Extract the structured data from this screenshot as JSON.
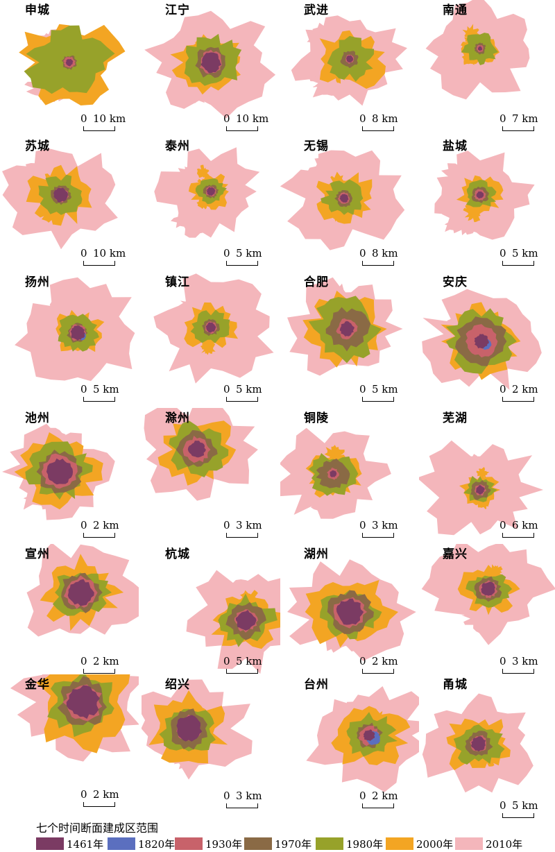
{
  "figure": {
    "legend_title": "七个时间断面建成区范围",
    "periods": [
      {
        "label": "1461年",
        "color": "#7b3b63"
      },
      {
        "label": "1820年",
        "color": "#5b6fbf"
      },
      {
        "label": "1930年",
        "color": "#c8626a"
      },
      {
        "label": "1970年",
        "color": "#8a6a45"
      },
      {
        "label": "1980年",
        "color": "#97a22a"
      },
      {
        "label": "2000年",
        "color": "#f3a523"
      },
      {
        "label": "2010年",
        "color": "#f4b6bb"
      }
    ]
  },
  "cities": [
    {
      "name": "申城",
      "scale": "10 km"
    },
    {
      "name": "江宁",
      "scale": "10 km"
    },
    {
      "name": "武进",
      "scale": "8 km"
    },
    {
      "name": "南通",
      "scale": "7 km"
    },
    {
      "name": "苏城",
      "scale": "10 km"
    },
    {
      "name": "泰州",
      "scale": "5 km"
    },
    {
      "name": "无锡",
      "scale": "8 km"
    },
    {
      "name": "盐城",
      "scale": "5 km"
    },
    {
      "name": "扬州",
      "scale": "5 km"
    },
    {
      "name": "镇江",
      "scale": "5 km"
    },
    {
      "name": "合肥",
      "scale": "5 km"
    },
    {
      "name": "安庆",
      "scale": "2 km"
    },
    {
      "name": "池州",
      "scale": "2 km"
    },
    {
      "name": "滁州",
      "scale": "3 km"
    },
    {
      "name": "铜陵",
      "scale": "3 km"
    },
    {
      "name": "芜湖",
      "scale": "6 km"
    },
    {
      "name": "宣州",
      "scale": "2 km"
    },
    {
      "name": "杭城",
      "scale": "5 km"
    },
    {
      "name": "湖州",
      "scale": "2 km"
    },
    {
      "name": "嘉兴",
      "scale": "3 km"
    },
    {
      "name": "金华",
      "scale": "2 km"
    },
    {
      "name": "绍兴",
      "scale": "3 km"
    },
    {
      "name": "台州",
      "scale": "2 km"
    },
    {
      "name": "甬城",
      "scale": "5 km"
    }
  ]
}
